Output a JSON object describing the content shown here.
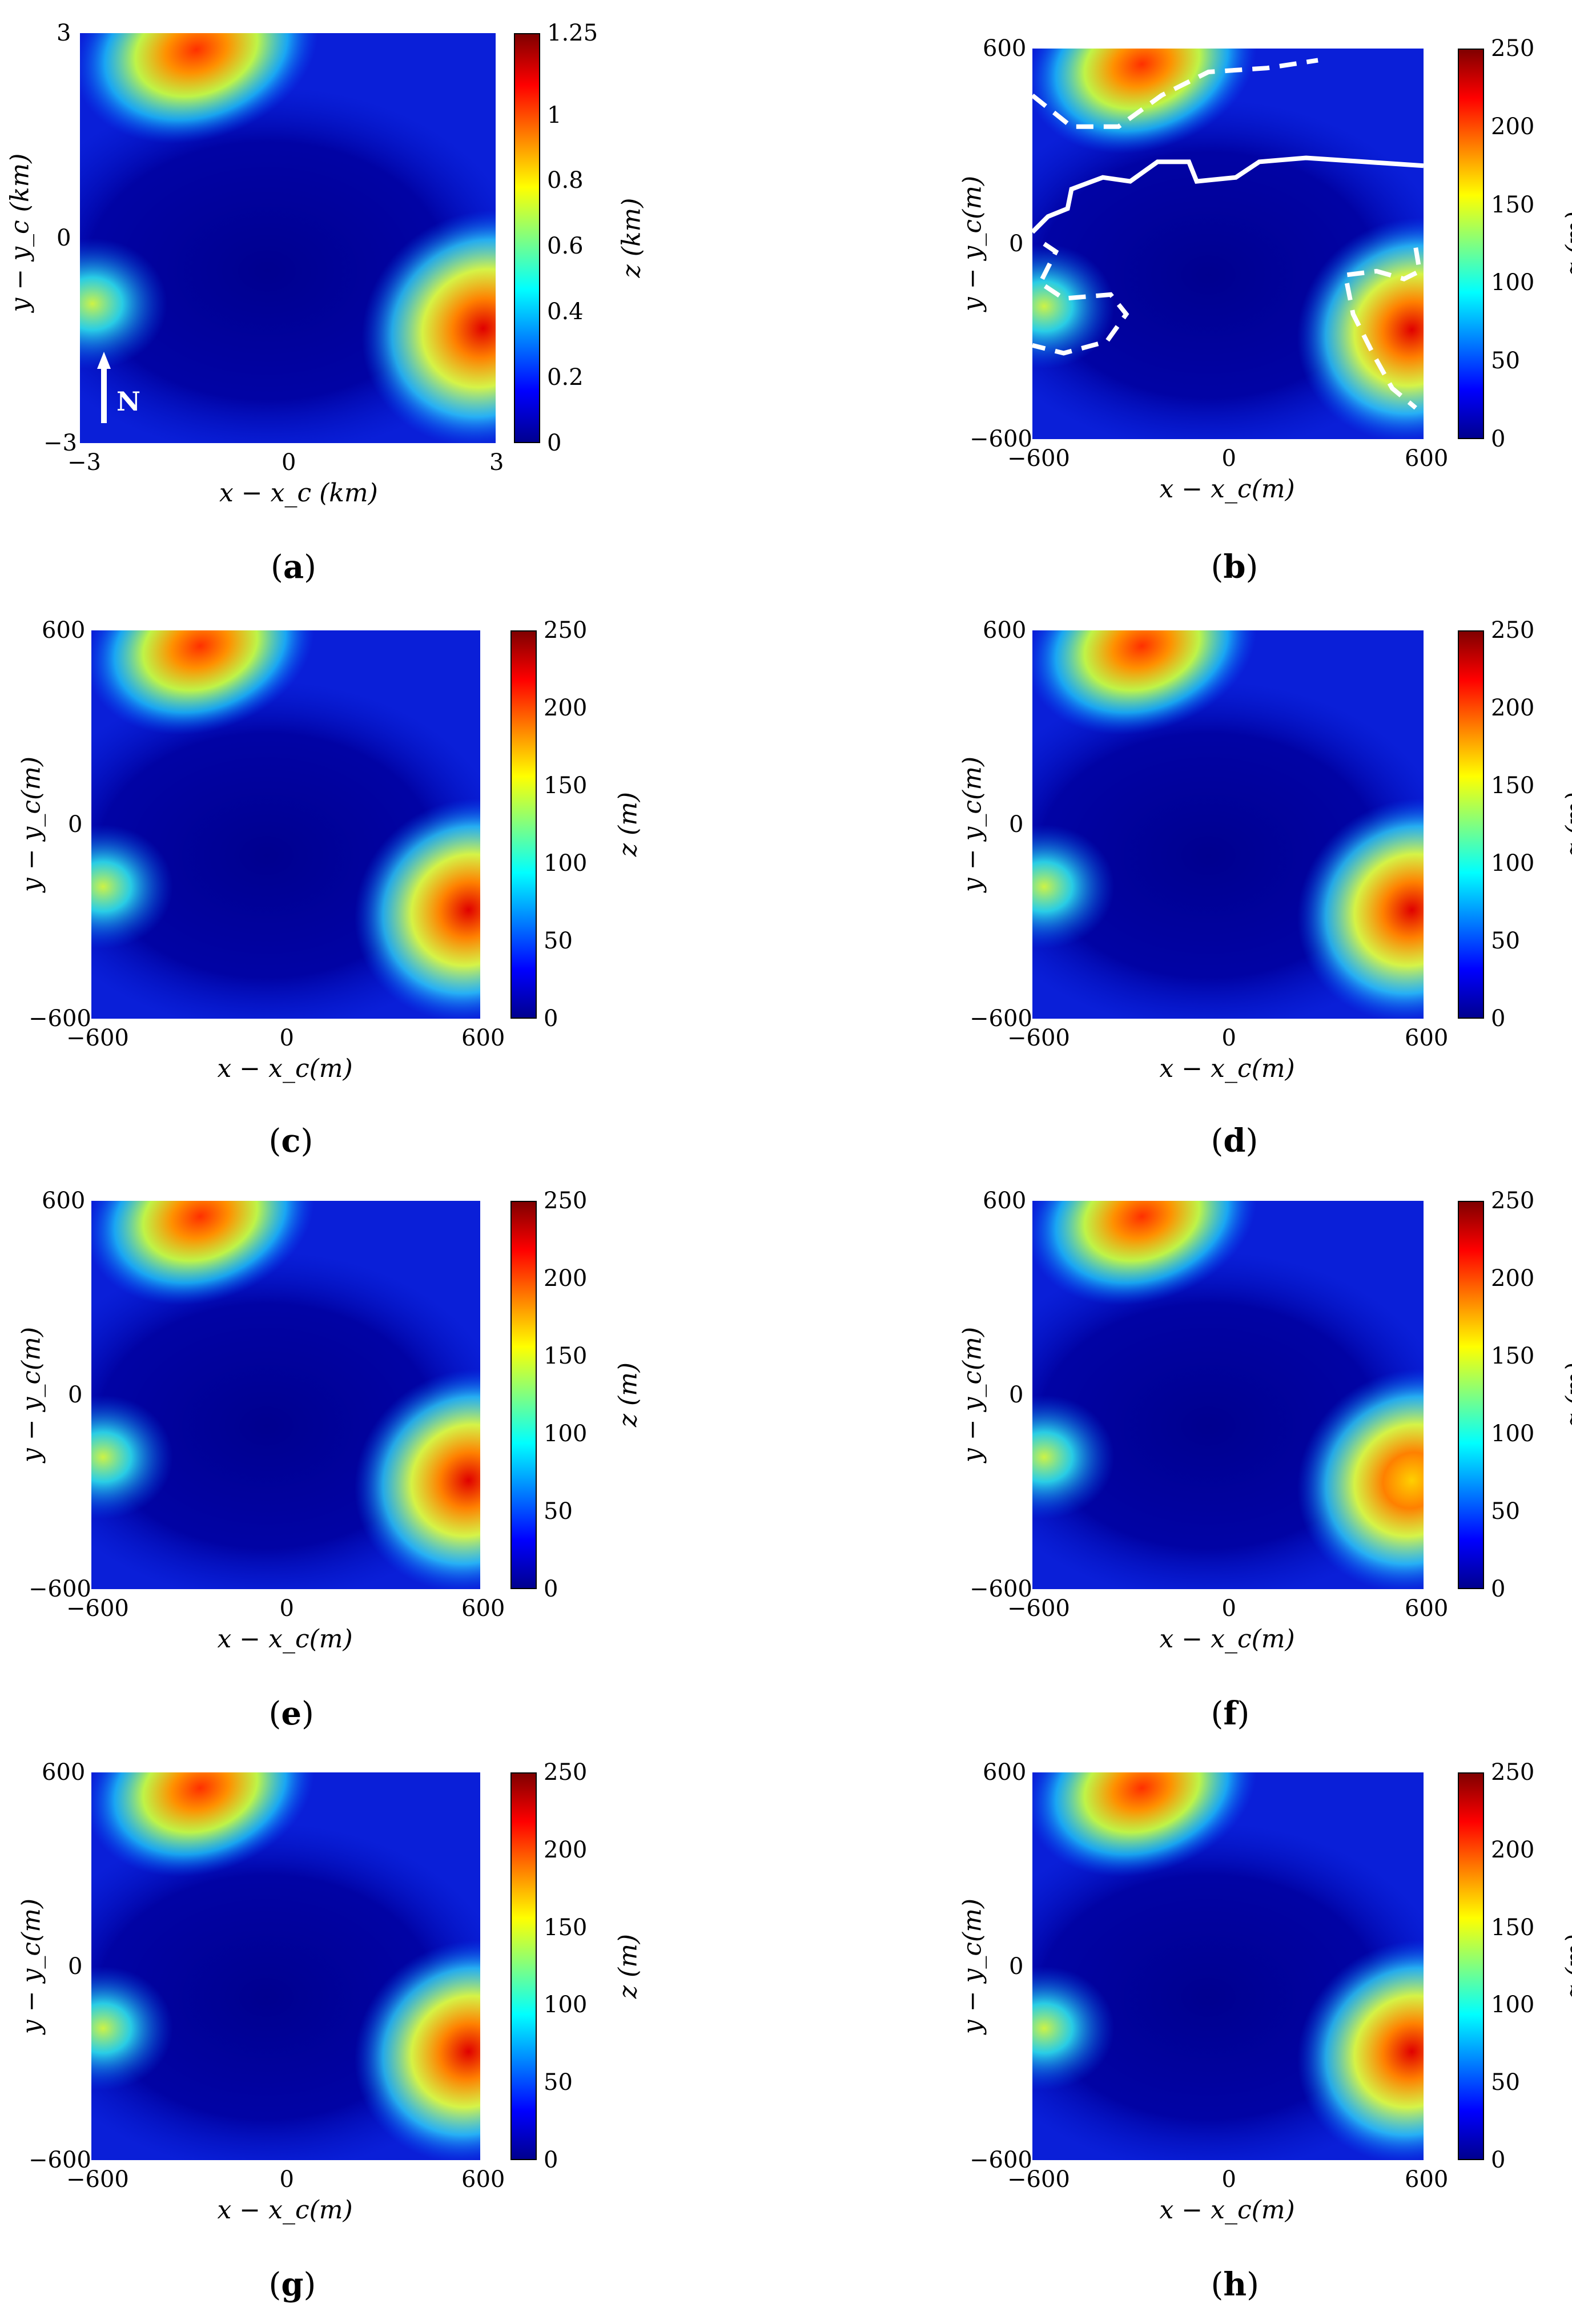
{
  "chart_data": [
    {
      "panel": "a",
      "type": "heatmap",
      "xlabel": "x − x_c (km)",
      "ylabel": "y − y_c (km)",
      "zlabel": "z (km)",
      "xticks": [
        "−3",
        "0",
        "3"
      ],
      "yticks": [
        "3",
        "0",
        "−3"
      ],
      "cbar_ticks": [
        "1.25",
        "1",
        "0.8",
        "0.6",
        "0.4",
        "0.2",
        "0"
      ],
      "xlim": [
        -3,
        3
      ],
      "ylim": [
        -3,
        3
      ],
      "zlim": [
        0,
        1.25
      ],
      "annotation": "N",
      "features": [
        {
          "x": -1.0,
          "y": 2.6,
          "z": 1.0
        },
        {
          "x": 2.8,
          "y": -1.2,
          "z": 1.25
        },
        {
          "x": -2.8,
          "y": -1.0,
          "z": 0.5
        }
      ]
    },
    {
      "panel": "b",
      "type": "heatmap",
      "xlabel": "x − x_c(m)",
      "ylabel": "y − y_c(m)",
      "zlabel": "z (m)",
      "xticks": [
        "−600",
        "0",
        "600"
      ],
      "yticks": [
        "600",
        "0",
        "−600"
      ],
      "cbar_ticks": [
        "250",
        "200",
        "150",
        "100",
        "50",
        "0"
      ],
      "xlim": [
        -600,
        600
      ],
      "ylim": [
        -600,
        600
      ],
      "zlim": [
        0,
        250
      ],
      "contours": [
        "solid",
        "dashed"
      ]
    },
    {
      "panel": "c",
      "type": "heatmap",
      "xlabel": "x − x_c(m)",
      "ylabel": "y − y_c(m)",
      "zlabel": "z (m)",
      "xticks": [
        "−600",
        "0",
        "600"
      ],
      "yticks": [
        "600",
        "0",
        "−600"
      ],
      "cbar_ticks": [
        "250",
        "200",
        "150",
        "100",
        "50",
        "0"
      ],
      "xlim": [
        -600,
        600
      ],
      "ylim": [
        -600,
        600
      ],
      "zlim": [
        0,
        250
      ]
    },
    {
      "panel": "d",
      "type": "heatmap",
      "xlabel": "x − x_c(m)",
      "ylabel": "y − y_c(m)",
      "zlabel": "z (m)",
      "xticks": [
        "−600",
        "0",
        "600"
      ],
      "yticks": [
        "600",
        "0",
        "−600"
      ],
      "cbar_ticks": [
        "250",
        "200",
        "150",
        "100",
        "50",
        "0"
      ],
      "xlim": [
        -600,
        600
      ],
      "ylim": [
        -600,
        600
      ],
      "zlim": [
        0,
        250
      ]
    },
    {
      "panel": "e",
      "type": "heatmap",
      "xlabel": "x − x_c(m)",
      "ylabel": "y − y_c(m)",
      "zlabel": "z (m)",
      "xticks": [
        "−600",
        "0",
        "600"
      ],
      "yticks": [
        "600",
        "0",
        "−600"
      ],
      "cbar_ticks": [
        "250",
        "200",
        "150",
        "100",
        "50",
        "0"
      ],
      "xlim": [
        -600,
        600
      ],
      "ylim": [
        -600,
        600
      ],
      "zlim": [
        0,
        250
      ]
    },
    {
      "panel": "f",
      "type": "heatmap",
      "xlabel": "x − x_c(m)",
      "ylabel": "y − y_c(m)",
      "zlabel": "z (m)",
      "xticks": [
        "−600",
        "0",
        "600"
      ],
      "yticks": [
        "600",
        "0",
        "−600"
      ],
      "cbar_ticks": [
        "250",
        "200",
        "150",
        "100",
        "50",
        "0"
      ],
      "xlim": [
        -600,
        600
      ],
      "ylim": [
        -600,
        600
      ],
      "zlim": [
        0,
        250
      ]
    },
    {
      "panel": "g",
      "type": "heatmap",
      "xlabel": "x − x_c(m)",
      "ylabel": "y − y_c(m)",
      "zlabel": "z (m)",
      "xticks": [
        "−600",
        "0",
        "600"
      ],
      "yticks": [
        "600",
        "0",
        "−600"
      ],
      "cbar_ticks": [
        "250",
        "200",
        "150",
        "100",
        "50",
        "0"
      ],
      "xlim": [
        -600,
        600
      ],
      "ylim": [
        -600,
        600
      ],
      "zlim": [
        0,
        250
      ]
    },
    {
      "panel": "h",
      "type": "heatmap",
      "xlabel": "x − x_c(m)",
      "ylabel": "y − y_c(m)",
      "zlabel": "z (m)",
      "xticks": [
        "−600",
        "0",
        "600"
      ],
      "yticks": [
        "600",
        "0",
        "−600"
      ],
      "cbar_ticks": [
        "250",
        "200",
        "150",
        "100",
        "50",
        "0"
      ],
      "xlim": [
        -600,
        600
      ],
      "ylim": [
        -600,
        600
      ],
      "zlim": [
        0,
        250
      ]
    }
  ],
  "colors": {
    "low": "#00008f",
    "mid": "#00ffff",
    "high": "#800000"
  }
}
